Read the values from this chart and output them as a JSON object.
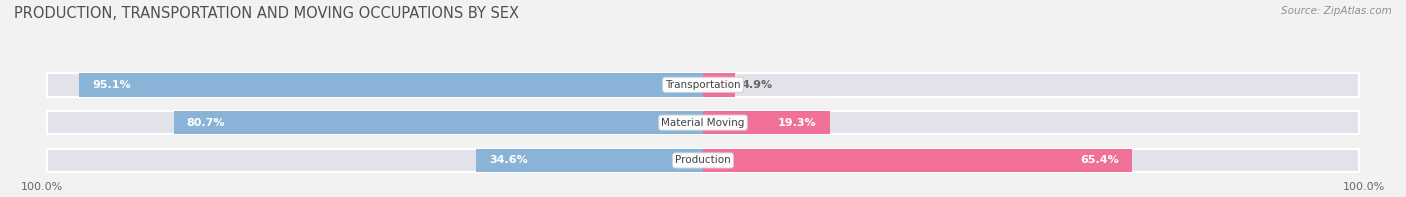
{
  "title": "PRODUCTION, TRANSPORTATION AND MOVING OCCUPATIONS BY SEX",
  "source": "Source: ZipAtlas.com",
  "categories": [
    "Transportation",
    "Material Moving",
    "Production"
  ],
  "male_pct": [
    95.1,
    80.7,
    34.6
  ],
  "female_pct": [
    4.9,
    19.3,
    65.4
  ],
  "male_color": "#89b4d8",
  "female_color": "#f07098",
  "background_color": "#f2f2f2",
  "bar_bg_color": "#e2e2ea",
  "bar_bg_edge_color": "#ffffff",
  "title_color": "#505050",
  "source_color": "#909090",
  "label_color": "#444444",
  "value_color_inside": "#ffffff",
  "value_color_outside": "#666666",
  "axis_label": "100.0%",
  "title_fontsize": 10.5,
  "source_fontsize": 7.5,
  "tick_fontsize": 8,
  "bar_label_fontsize": 8,
  "cat_label_fontsize": 7.5,
  "bar_height": 0.62,
  "xlim_left": -105,
  "xlim_right": 105,
  "ylim_bottom": -0.55,
  "ylim_top": 3.2
}
